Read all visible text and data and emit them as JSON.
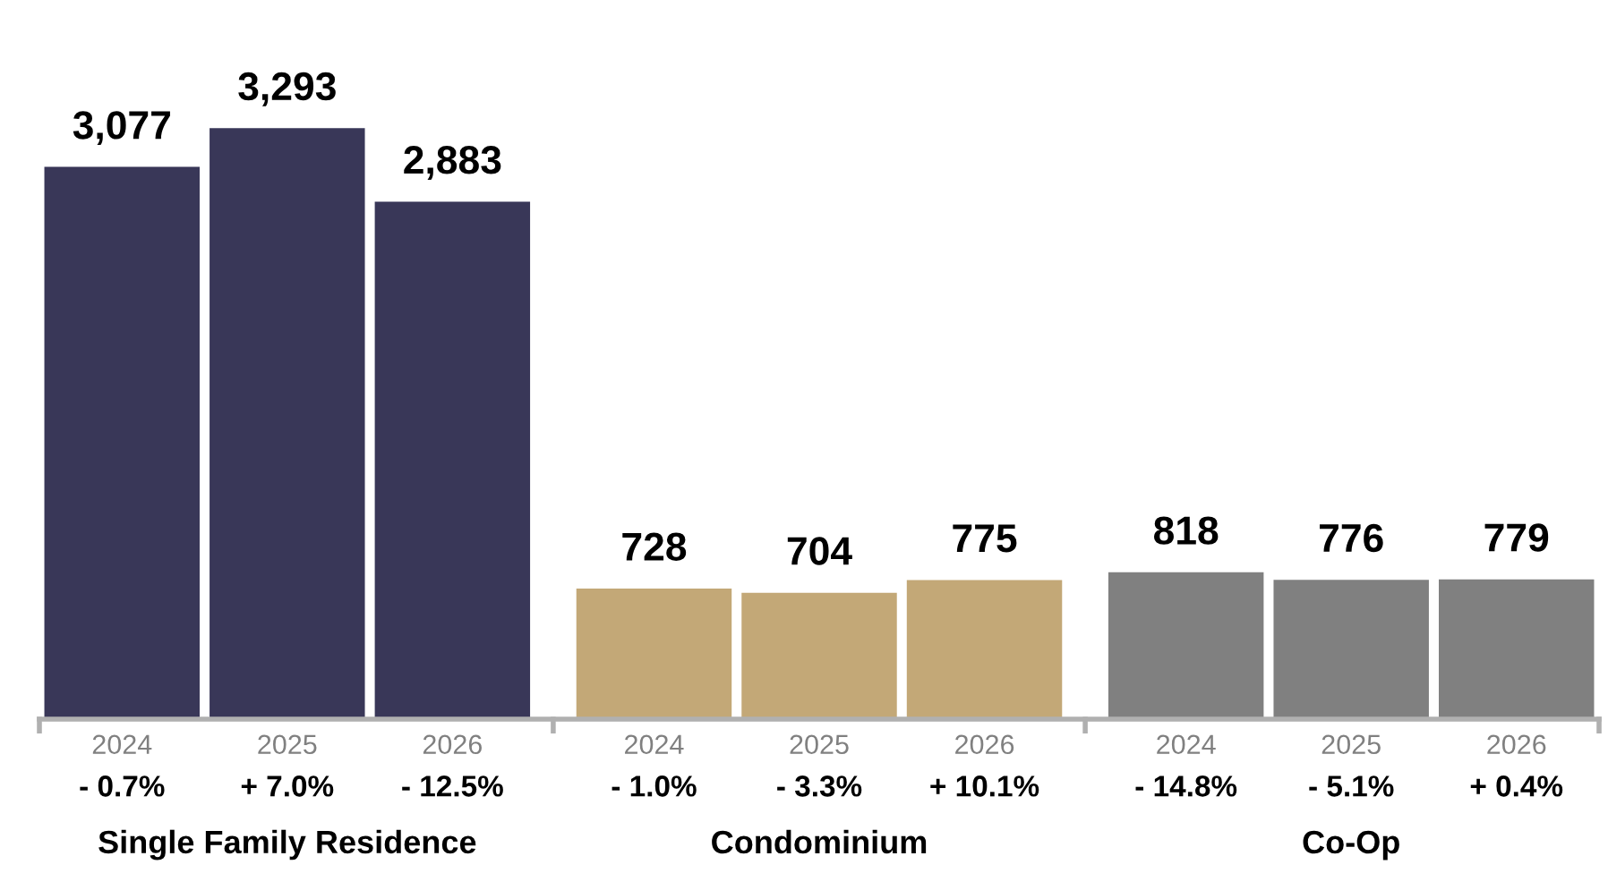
{
  "chart_data": {
    "type": "bar",
    "categories": [
      "2024",
      "2025",
      "2026",
      "2024",
      "2025",
      "2026",
      "2024",
      "2025",
      "2026"
    ],
    "values": [
      3077,
      3293,
      2883,
      728,
      704,
      775,
      818,
      776,
      779
    ],
    "colors": [
      "#393758",
      "#393758",
      "#393758",
      "#c3a877",
      "#c3a877",
      "#c3a877",
      "#808080",
      "#808080",
      "#808080"
    ],
    "data_labels": true,
    "value_labels": [
      "3,077",
      "3,293",
      "2,883",
      "728",
      "704",
      "775",
      "818",
      "776",
      "779"
    ],
    "annotations": [
      "- 0.7%",
      "+ 7.0%",
      "- 12.5%",
      "- 1.0%",
      "- 3.3%",
      "+ 10.1%",
      "- 14.8%",
      "- 5.1%",
      "+ 0.4%",
      "Single Family Residence",
      "Condominium",
      "Co-Op"
    ],
    "grid": false,
    "legend": false
  }
}
